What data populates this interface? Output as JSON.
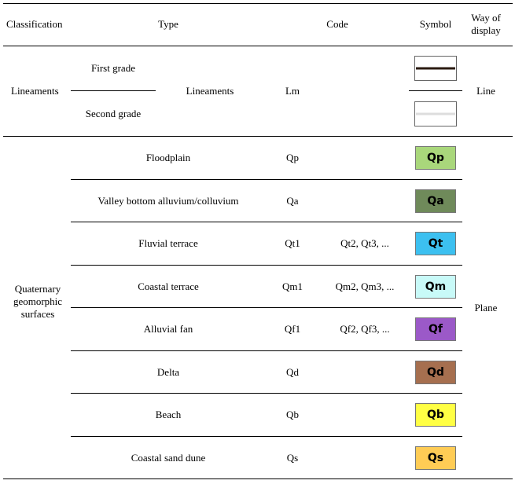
{
  "header": {
    "classification": "Classification",
    "type": "Type",
    "code": "Code",
    "symbol": "Symbol",
    "display_line1": "Way of",
    "display_line2": "display"
  },
  "lineaments": {
    "classification": "Lineaments",
    "first_grade": "First grade",
    "second_grade": "Second grade",
    "type": "Lineaments",
    "code": "Lm",
    "display": "Line",
    "first_line_color": "#2a1a10",
    "second_line_color": "#dddddd"
  },
  "quaternary": {
    "classification_line1": "Quaternary",
    "classification_line2": "geomorphic",
    "classification_line3": "surfaces",
    "display": "Plane",
    "rows": [
      {
        "type": "Floodplain",
        "code": "Qp",
        "code_extra": "",
        "symbol": "Qp",
        "color": "#a9d77b"
      },
      {
        "type": "Valley bottom alluvium/colluvium",
        "code": "Qa",
        "code_extra": "",
        "symbol": "Qa",
        "color": "#6f8a5a"
      },
      {
        "type": "Fluvial terrace",
        "code": "Qt1",
        "code_extra": "Qt2, Qt3, ...",
        "symbol": "Qt",
        "color": "#3cc0f0"
      },
      {
        "type": "Coastal terrace",
        "code": "Qm1",
        "code_extra": "Qm2, Qm3, ...",
        "symbol": "Qm",
        "color": "#c8faf8"
      },
      {
        "type": "Alluvial fan",
        "code": "Qf1",
        "code_extra": "Qf2, Qf3, ...",
        "symbol": "Qf",
        "color": "#9b59c8"
      },
      {
        "type": "Delta",
        "code": "Qd",
        "code_extra": "",
        "symbol": "Qd",
        "color": "#a66f4f"
      },
      {
        "type": "Beach",
        "code": "Qb",
        "code_extra": "",
        "symbol": "Qb",
        "color": "#ffff44"
      },
      {
        "type": "Coastal sand dune",
        "code": "Qs",
        "code_extra": "",
        "symbol": "Qs",
        "color": "#ffcc55"
      }
    ]
  }
}
